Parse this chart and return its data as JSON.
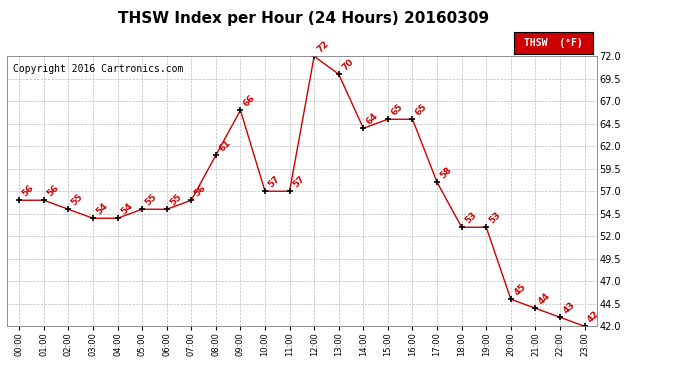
{
  "title": "THSW Index per Hour (24 Hours) 20160309",
  "copyright": "Copyright 2016 Cartronics.com",
  "legend_label": "THSW  (°F)",
  "hours": [
    0,
    1,
    2,
    3,
    4,
    5,
    6,
    7,
    8,
    9,
    10,
    11,
    12,
    13,
    14,
    15,
    16,
    17,
    18,
    19,
    20,
    21,
    22,
    23
  ],
  "values": [
    56,
    56,
    55,
    54,
    54,
    55,
    55,
    56,
    61,
    66,
    57,
    57,
    72,
    70,
    64,
    65,
    65,
    58,
    53,
    53,
    45,
    44,
    43,
    42
  ],
  "x_labels": [
    "00:00",
    "01:00",
    "02:00",
    "03:00",
    "04:00",
    "05:00",
    "06:00",
    "07:00",
    "08:00",
    "09:00",
    "10:00",
    "11:00",
    "12:00",
    "13:00",
    "14:00",
    "15:00",
    "16:00",
    "17:00",
    "18:00",
    "19:00",
    "20:00",
    "21:00",
    "22:00",
    "23:00"
  ],
  "ylim_min": 42.0,
  "ylim_max": 72.0,
  "yticks": [
    42.0,
    44.5,
    47.0,
    49.5,
    52.0,
    54.5,
    57.0,
    59.5,
    62.0,
    64.5,
    67.0,
    69.5,
    72.0
  ],
  "line_color": "#cc0000",
  "marker_color": "#000000",
  "label_color": "#cc0000",
  "bg_color": "#ffffff",
  "grid_color": "#bbbbbb",
  "title_fontsize": 11,
  "copyright_fontsize": 7,
  "label_fontsize": 6.5,
  "legend_bg": "#cc0000",
  "legend_text_color": "#ffffff"
}
